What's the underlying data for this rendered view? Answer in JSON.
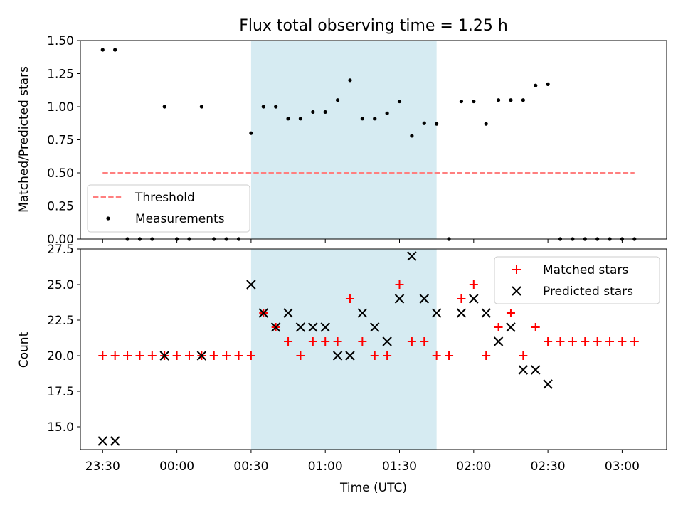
{
  "chart_data": [
    {
      "type": "scatter",
      "title": "Flux total observing time = 1.25 h",
      "xlabel": "",
      "ylabel": "Matched/Predicted stars",
      "ylim": [
        0,
        1.5
      ],
      "yticks": [
        "0.00",
        "0.25",
        "0.50",
        "0.75",
        "1.00",
        "1.25",
        "1.50"
      ],
      "xaxis": {
        "min": "23:21",
        "max": "03:18",
        "tick_labels_shown": false
      },
      "shaded_interval": [
        "00:30",
        "01:45"
      ],
      "shade_color": "#add8e6",
      "legend_position": "lower-left",
      "threshold": {
        "name": "Threshold",
        "value": 0.5,
        "x_start": "23:30",
        "x_end": "03:05",
        "color": "#ff7f7f",
        "style": "dashed"
      },
      "series": [
        {
          "name": "Measurements",
          "marker": "dot",
          "color": "#000000",
          "x": [
            "23:30",
            "23:35",
            "23:40",
            "23:45",
            "23:50",
            "23:55",
            "00:00",
            "00:05",
            "00:10",
            "00:15",
            "00:20",
            "00:25",
            "00:30",
            "00:35",
            "00:40",
            "00:45",
            "00:50",
            "00:55",
            "01:00",
            "01:05",
            "01:10",
            "01:15",
            "01:20",
            "01:25",
            "01:30",
            "01:35",
            "01:40",
            "01:45",
            "01:50",
            "01:55",
            "02:00",
            "02:05",
            "02:10",
            "02:15",
            "02:20",
            "02:25",
            "02:30",
            "02:35",
            "02:40",
            "02:45",
            "02:50",
            "02:55",
            "03:00",
            "03:05"
          ],
          "y": [
            1.43,
            1.43,
            0,
            0,
            0,
            1.0,
            0,
            0,
            1.0,
            0,
            0,
            0,
            0.8,
            1.0,
            1.0,
            0.91,
            0.91,
            0.96,
            0.96,
            1.05,
            1.2,
            0.91,
            0.91,
            0.95,
            1.04,
            0.78,
            0.875,
            0.87,
            0,
            1.04,
            1.04,
            0.87,
            1.05,
            1.05,
            1.05,
            1.16,
            1.17,
            0,
            0,
            0,
            0,
            0,
            0,
            0
          ]
        }
      ]
    },
    {
      "type": "scatter",
      "title": "",
      "xlabel": "Time (UTC)",
      "ylabel": "Count",
      "ylim": [
        13.4,
        27.5
      ],
      "yticks": [
        "15.0",
        "17.5",
        "20.0",
        "22.5",
        "25.0",
        "27.5"
      ],
      "xticks": [
        "23:30",
        "00:00",
        "00:30",
        "01:00",
        "01:30",
        "02:00",
        "02:30",
        "03:00"
      ],
      "shaded_interval": [
        "00:30",
        "01:45"
      ],
      "shade_color": "#add8e6",
      "legend_position": "upper-right",
      "series": [
        {
          "name": "Matched stars",
          "marker": "plus",
          "color": "#ff0000",
          "x": [
            "23:30",
            "23:35",
            "23:40",
            "23:45",
            "23:50",
            "23:55",
            "00:00",
            "00:05",
            "00:10",
            "00:15",
            "00:20",
            "00:25",
            "00:30",
            "00:35",
            "00:40",
            "00:45",
            "00:50",
            "00:55",
            "01:00",
            "01:05",
            "01:10",
            "01:15",
            "01:20",
            "01:25",
            "01:30",
            "01:35",
            "01:40",
            "01:45",
            "01:50",
            "01:55",
            "02:00",
            "02:05",
            "02:10",
            "02:15",
            "02:20",
            "02:25",
            "02:30",
            "02:35",
            "02:40",
            "02:45",
            "02:50",
            "02:55",
            "03:00",
            "03:05"
          ],
          "y": [
            20,
            20,
            20,
            20,
            20,
            20,
            20,
            20,
            20,
            20,
            20,
            20,
            20,
            23,
            22,
            21,
            20,
            21,
            21,
            21,
            24,
            21,
            20,
            20,
            25,
            21,
            21,
            20,
            20,
            24,
            25,
            20,
            22,
            23,
            20,
            22,
            21,
            21,
            21,
            21,
            21,
            21,
            21,
            21
          ]
        },
        {
          "name": "Predicted stars",
          "marker": "x",
          "color": "#000000",
          "x": [
            "23:30",
            "23:35",
            "23:55",
            "00:10",
            "00:30",
            "00:35",
            "00:40",
            "00:45",
            "00:50",
            "00:55",
            "01:00",
            "01:05",
            "01:10",
            "01:15",
            "01:20",
            "01:25",
            "01:30",
            "01:35",
            "01:40",
            "01:45",
            "01:55",
            "02:00",
            "02:05",
            "02:10",
            "02:15",
            "02:20",
            "02:25",
            "02:30"
          ],
          "y": [
            14,
            14,
            20,
            20,
            25,
            23,
            22,
            23,
            22,
            22,
            22,
            20,
            20,
            23,
            22,
            21,
            24,
            27,
            24,
            23,
            23,
            24,
            23,
            21,
            22,
            19,
            19,
            18
          ]
        }
      ]
    }
  ]
}
